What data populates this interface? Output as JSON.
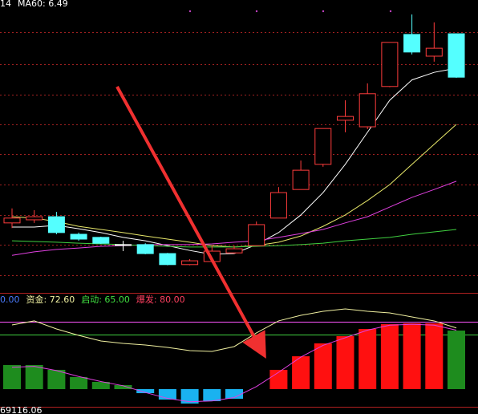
{
  "chart_data": [
    {
      "type": "candlestick",
      "header": [
        {
          "text": "14",
          "color": "#ffffff"
        },
        {
          "text": "MA60: 6.49",
          "color": "#ffffff"
        }
      ],
      "open": [
        6.53,
        6.62,
        6.71,
        6.2,
        6.11,
        5.9,
        5.9,
        5.64,
        5.32,
        5.41,
        5.66,
        5.87,
        6.67,
        7.5,
        8.23,
        9.51,
        9.32,
        10.49,
        12.0,
        11.37,
        12.02
      ],
      "close": [
        6.67,
        6.71,
        6.25,
        6.06,
        5.94,
        5.9,
        5.64,
        5.32,
        5.43,
        5.71,
        5.78,
        6.48,
        7.41,
        8.06,
        9.27,
        9.62,
        10.28,
        11.77,
        11.49,
        11.6,
        10.76
      ],
      "high": [
        6.95,
        6.9,
        6.85,
        6.25,
        6.13,
        6.01,
        5.94,
        5.66,
        5.48,
        5.87,
        5.87,
        6.57,
        7.57,
        8.34,
        9.27,
        10.09,
        10.58,
        11.77,
        12.58,
        12.35,
        12.02
      ],
      "low": [
        6.38,
        6.53,
        6.2,
        6.01,
        5.92,
        5.71,
        5.62,
        5.3,
        5.3,
        5.38,
        5.64,
        5.87,
        6.67,
        7.5,
        8.16,
        9.16,
        9.25,
        10.47,
        11.42,
        11.21,
        10.74
      ],
      "up_color": "#ff3c3c",
      "down_color": "#54ffff",
      "doji_color": "#ffffff",
      "series": [
        {
          "color": "#ffffff",
          "values": [
            6.41,
            6.41,
            6.46,
            6.36,
            6.25,
            6.11,
            6.01,
            5.87,
            5.73,
            5.62,
            5.64,
            5.9,
            6.25,
            6.76,
            7.41,
            8.23,
            9.16,
            10.09,
            10.68,
            10.9,
            11.02
          ]
        },
        {
          "color": "#e8e86a",
          "values": [
            6.71,
            6.67,
            6.57,
            6.43,
            6.34,
            6.25,
            6.15,
            6.06,
            5.97,
            5.87,
            5.83,
            5.87,
            5.97,
            6.15,
            6.43,
            6.76,
            7.18,
            7.64,
            8.23,
            8.81,
            9.39
          ]
        },
        {
          "color": "#e040e0",
          "values": [
            5.59,
            5.69,
            5.76,
            5.8,
            5.85,
            5.87,
            5.9,
            5.9,
            5.9,
            5.92,
            5.97,
            6.01,
            6.11,
            6.22,
            6.34,
            6.53,
            6.71,
            6.99,
            7.27,
            7.5,
            7.74
          ]
        },
        {
          "color": "#40d040",
          "values": [
            6.01,
            5.99,
            5.97,
            5.94,
            5.92,
            5.9,
            5.87,
            5.85,
            5.83,
            5.83,
            5.83,
            5.85,
            5.87,
            5.9,
            5.94,
            6.01,
            6.06,
            6.11,
            6.2,
            6.27,
            6.34
          ]
        }
      ],
      "ylim": [
        4.5,
        13
      ],
      "yticks": [
        5.01,
        5.9,
        6.76,
        7.64,
        8.53,
        9.39,
        10.25,
        11.14,
        12.07
      ],
      "grid": true,
      "grid_color": "#a02020"
    },
    {
      "type": "bar",
      "header": [
        {
          "text": "0.00",
          "color": "#4a7cff"
        },
        {
          "text": "资金: 72.60",
          "color": "#f0f0a0"
        },
        {
          "text": "启动: 65.00",
          "color": "#40e040"
        },
        {
          "text": "爆发: 80.00",
          "color": "#ff4060"
        }
      ],
      "values": [
        28.6,
        28.6,
        22.9,
        14.3,
        8.6,
        4.8,
        -4.8,
        -12.4,
        -17.1,
        -14.3,
        -11.4,
        0,
        22.9,
        39,
        54.3,
        62.9,
        71.4,
        77.1,
        78.1,
        78.1,
        69.5
      ],
      "bar_colors": [
        "#1e8c1e",
        "#1e8c1e",
        "#1e8c1e",
        "#1e8c1e",
        "#1e8c1e",
        "#1e8c1e",
        "#1ab2f0",
        "#1ab2f0",
        "#1ab2f0",
        "#1ab2f0",
        "#1ab2f0",
        "#ff1010",
        "#ff1010",
        "#ff1010",
        "#ff1010",
        "#ff1010",
        "#ff1010",
        "#ff1010",
        "#ff1010",
        "#ff1010",
        "#1e8c1e"
      ],
      "series": [
        {
          "color": "#f0f0a0",
          "values": [
            76.2,
            81.0,
            71.4,
            63.8,
            57.1,
            54.3,
            52.4,
            49.5,
            45.7,
            44.8,
            50.5,
            66.7,
            81.0,
            87.6,
            92.4,
            95.2,
            92.4,
            90.5,
            85.7,
            81.0,
            72.6
          ]
        },
        {
          "color": "#e040e0",
          "values": [
            26,
            27,
            22,
            15,
            9,
            4,
            -4,
            -11,
            -15,
            -14,
            -10,
            3,
            20,
            38,
            52,
            61,
            70,
            76,
            77,
            76,
            70
          ]
        }
      ],
      "ref_lines": [
        {
          "value": 80,
          "color": "#ff55ff"
        },
        {
          "value": 65,
          "color": "#40d040"
        }
      ],
      "ylim": [
        -24,
        100
      ],
      "footer": "69116.06"
    }
  ]
}
